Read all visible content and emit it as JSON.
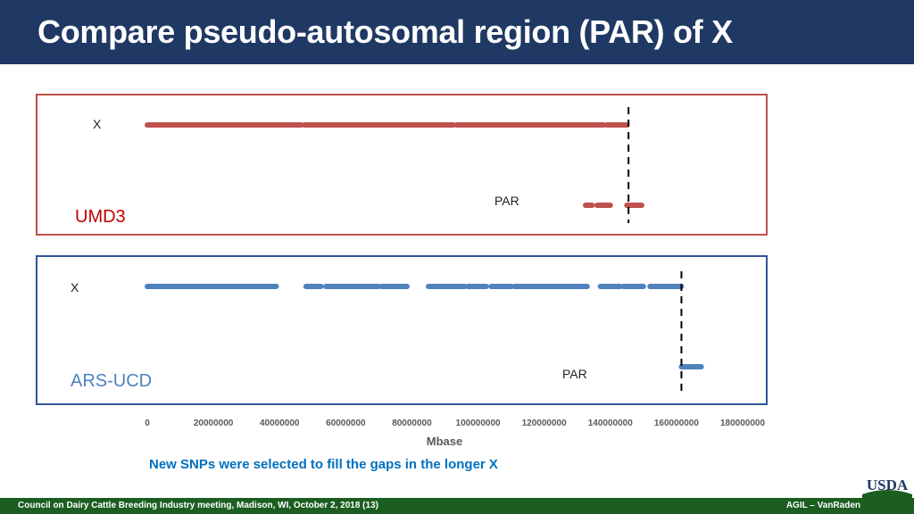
{
  "slide": {
    "title": "Compare pseudo-autosomal region (PAR) of X",
    "note": "New SNPs were selected to fill the gaps in the longer X",
    "footer_left": "Council on Dairy Cattle Breeding Industry meeting, Madison, WI, October 2, 2018 (13)",
    "footer_right": "AGIL – VanRaden",
    "logo_text": "USDA"
  },
  "colors": {
    "title_bg": "#1f3864",
    "umd3": "#c0504d",
    "ars": "#4f81bd",
    "note": "#0070c0",
    "footer_bg": "#1b5e20"
  },
  "chart_data": {
    "type": "scatter",
    "xlabel": "Mbase",
    "xlim": [
      0,
      180000000
    ],
    "ticks": [
      "0",
      "20000000",
      "40000000",
      "60000000",
      "80000000",
      "100000000",
      "120000000",
      "140000000",
      "160000000",
      "180000000"
    ],
    "panels": [
      {
        "name": "UMD3",
        "row_label": "X",
        "par_label": "PAR",
        "par_boundary": 145500000,
        "x_segments": [
          [
            0,
            46500000
          ],
          [
            47500000,
            92500000
          ],
          [
            93500000,
            138000000
          ],
          [
            139000000,
            145000000
          ]
        ],
        "par_segments": [
          [
            132500000,
            134500000
          ],
          [
            136000000,
            140000000
          ],
          [
            145000000,
            149500000
          ]
        ]
      },
      {
        "name": "ARS-UCD",
        "row_label": "X",
        "par_label": "PAR",
        "par_boundary": 161500000,
        "x_segments": [
          [
            0,
            39000000
          ],
          [
            48000000,
            52500000
          ],
          [
            54000000,
            70000000
          ],
          [
            71000000,
            78500000
          ],
          [
            85000000,
            96000000
          ],
          [
            97000000,
            102500000
          ],
          [
            104000000,
            110000000
          ],
          [
            111000000,
            133000000
          ],
          [
            137000000,
            143000000
          ],
          [
            144000000,
            150000000
          ],
          [
            152000000,
            161500000
          ]
        ],
        "par_segments": [
          [
            161500000,
            167500000
          ]
        ]
      }
    ]
  }
}
